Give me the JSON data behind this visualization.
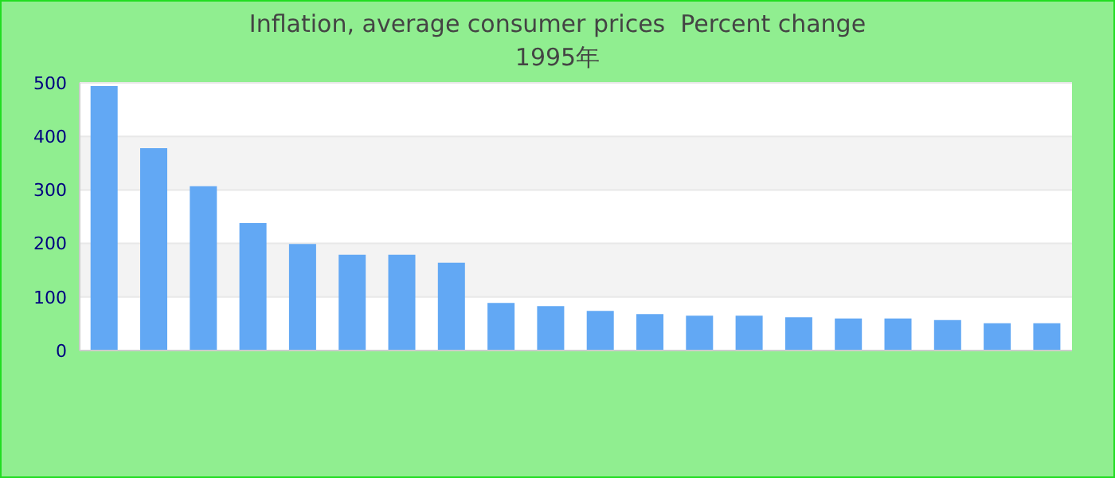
{
  "chart_data": {
    "type": "bar",
    "title": "Inflation, average consumer prices  Percent change",
    "subtitle": "1995年",
    "categories": [
      null,
      null,
      null,
      null,
      null,
      null,
      null,
      null,
      null,
      null,
      null,
      null,
      null,
      null,
      null,
      null,
      null,
      null,
      null,
      null
    ],
    "values": [
      494,
      378,
      307,
      238,
      199,
      179,
      179,
      164,
      89,
      83,
      74,
      68,
      65,
      65,
      62,
      60,
      60,
      57,
      51,
      51
    ],
    "color": "#62a8f4",
    "ylim": [
      0,
      500
    ],
    "yticks": [
      0,
      100,
      200,
      300,
      400,
      500
    ],
    "grid": "y",
    "legend": false
  }
}
